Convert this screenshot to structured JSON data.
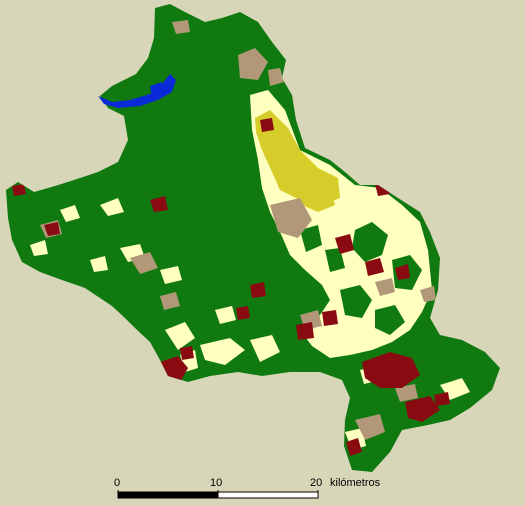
{
  "colors": {
    "background": "#d8d6b8",
    "forest": "#107a10",
    "light_yellow": "#ffffc0",
    "tan": "#b09878",
    "dark_red": "#8a0a12",
    "olive_yellow": "#d6cc2a",
    "water_blue": "#0a2ad8"
  },
  "scale_bar": {
    "ticks": [
      "0",
      "10",
      "20"
    ],
    "unit": "kilómetros"
  }
}
